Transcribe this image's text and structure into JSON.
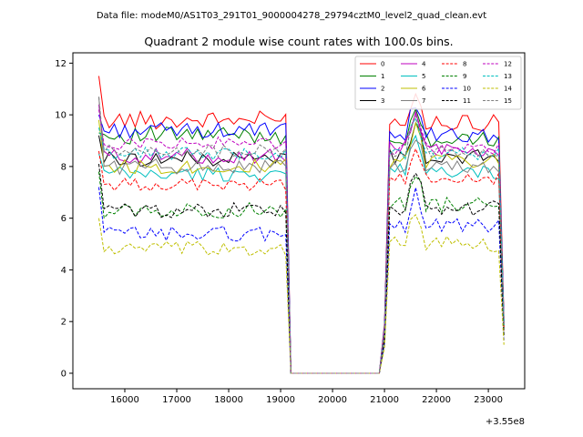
{
  "figure": {
    "suptitle": "Data file: modeM0/AS1T03_291T01_9000004278_29794cztM0_level2_quad_clean.evt"
  },
  "chart_data": {
    "type": "line",
    "title": "Quadrant 2 module wise count rates with 100.0s bins.",
    "xlabel": "",
    "ylabel": "",
    "x_offset_label": "+3.55e8",
    "xlim": [
      15000,
      23700
    ],
    "ylim": [
      -0.6,
      12.4
    ],
    "xticks": [
      16000,
      17000,
      18000,
      19000,
      20000,
      21000,
      22000,
      23000
    ],
    "xtick_labels": [
      "16000",
      "17000",
      "18000",
      "19000",
      "20000",
      "21000",
      "22000",
      "23000"
    ],
    "yticks": [
      0,
      2,
      4,
      6,
      8,
      10,
      12
    ],
    "ytick_labels": [
      "0",
      "2",
      "4",
      "6",
      "8",
      "10",
      "12"
    ],
    "grid": false,
    "legend_position": "upper right",
    "legend_columns": 4,
    "segments": [
      {
        "start": 15500,
        "end": 19100
      },
      {
        "start": 19200,
        "end": 20900
      },
      {
        "start": 21000,
        "end": 23300
      }
    ],
    "series": [
      {
        "name": "0",
        "color": "#ff0000",
        "dash": "solid",
        "levels": [
          9.8,
          0,
          9.7
        ],
        "first": 11.5,
        "amp": 0.35
      },
      {
        "name": "1",
        "color": "#008000",
        "dash": "solid",
        "levels": [
          9.2,
          0,
          9.0
        ],
        "first": 9.3,
        "amp": 0.35
      },
      {
        "name": "2",
        "color": "#0000ff",
        "dash": "solid",
        "levels": [
          9.4,
          0,
          9.2
        ],
        "first": 10.0,
        "amp": 0.3
      },
      {
        "name": "3",
        "color": "#000000",
        "dash": "solid",
        "levels": [
          8.3,
          0,
          8.4
        ],
        "first": 9.2,
        "amp": 0.3
      },
      {
        "name": "4",
        "color": "#bf00bf",
        "dash": "solid",
        "levels": [
          8.4,
          0,
          8.7
        ],
        "first": 10.4,
        "amp": 0.3
      },
      {
        "name": "5",
        "color": "#00bfbf",
        "dash": "solid",
        "levels": [
          7.7,
          0,
          7.8
        ],
        "first": 8.5,
        "amp": 0.3
      },
      {
        "name": "6",
        "color": "#bfbf00",
        "dash": "solid",
        "levels": [
          8.0,
          0,
          8.2
        ],
        "first": 9.8,
        "amp": 0.3
      },
      {
        "name": "7",
        "color": "#808080",
        "dash": "solid",
        "levels": [
          8.0,
          0,
          8.0
        ],
        "first": 10.7,
        "amp": 0.3
      },
      {
        "name": "8",
        "color": "#ff0000",
        "dash": "dashed",
        "levels": [
          7.3,
          0,
          7.5
        ],
        "first": 8.6,
        "amp": 0.25
      },
      {
        "name": "9",
        "color": "#008000",
        "dash": "dashed",
        "levels": [
          6.3,
          0,
          6.5
        ],
        "first": 7.8,
        "amp": 0.3
      },
      {
        "name": "10",
        "color": "#0000ff",
        "dash": "dashed",
        "levels": [
          5.4,
          0,
          5.7
        ],
        "first": 7.2,
        "amp": 0.3
      },
      {
        "name": "11",
        "color": "#000000",
        "dash": "dashed",
        "levels": [
          6.3,
          0,
          6.4
        ],
        "first": 8.1,
        "amp": 0.3
      },
      {
        "name": "12",
        "color": "#bf00bf",
        "dash": "dashed",
        "levels": [
          8.9,
          0,
          8.7
        ],
        "first": 10.2,
        "amp": 0.25
      },
      {
        "name": "13",
        "color": "#00bfbf",
        "dash": "dashed",
        "levels": [
          8.5,
          0,
          8.5
        ],
        "first": 9.5,
        "amp": 0.25
      },
      {
        "name": "14",
        "color": "#bfbf00",
        "dash": "dashed",
        "levels": [
          4.8,
          0,
          5.0
        ],
        "first": 6.0,
        "amp": 0.3
      },
      {
        "name": "15",
        "color": "#808080",
        "dash": "dashed",
        "levels": [
          8.6,
          0,
          8.6
        ],
        "first": 10.7,
        "amp": 0.25
      }
    ]
  }
}
